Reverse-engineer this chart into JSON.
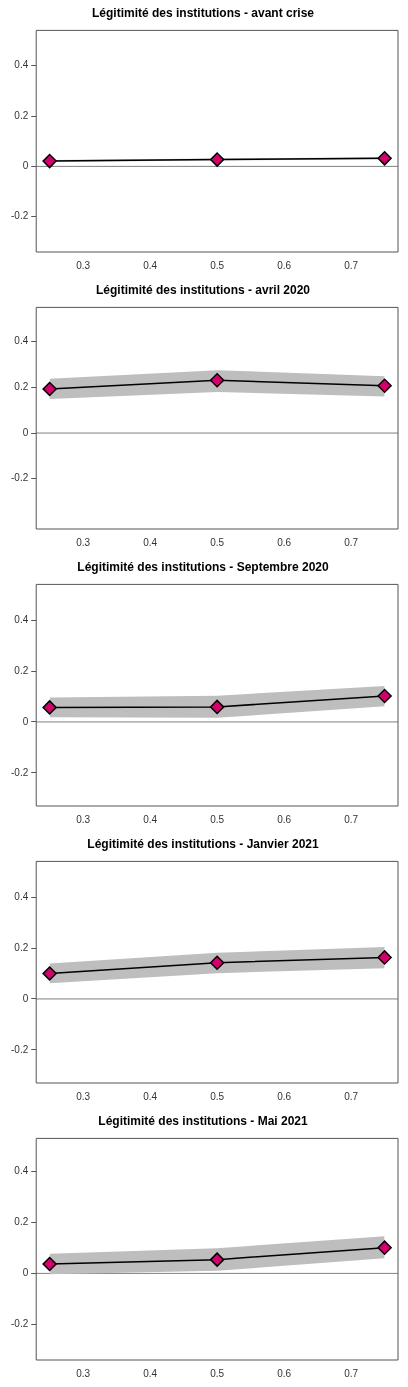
{
  "chart_data": [
    {
      "type": "line",
      "title": "Légitimité des institutions - avant crise",
      "xlim": [
        0.23,
        0.77
      ],
      "xticks": [
        0.3,
        0.4,
        0.5,
        0.6,
        0.7
      ],
      "ylim": [
        -0.34,
        0.54
      ],
      "yticks": [
        -0.2,
        0,
        0.2,
        0.4
      ],
      "marker": "diamond",
      "grid": false,
      "ref_lines": [
        {
          "axis": "y",
          "value": 0,
          "color": "#808080"
        }
      ],
      "series": [
        {
          "marker": "none",
          "color": "#000000",
          "x": [
            0.25,
            0.5,
            0.75
          ],
          "values": [
            0.021,
            0.027,
            0.032
          ],
          "lower": [
            0.017,
            0.023,
            0.028
          ],
          "upper": [
            0.025,
            0.031,
            0.036
          ]
        },
        {
          "type": "scatter",
          "color": "#d4006c",
          "x": [
            0.25,
            0.5,
            0.75
          ],
          "values": [
            0.021,
            0.027,
            0.032
          ]
        }
      ]
    },
    {
      "type": "line",
      "title": "Légitimité des institutions - avril 2020",
      "xlim": [
        0.23,
        0.77
      ],
      "xticks": [
        0.3,
        0.4,
        0.5,
        0.6,
        0.7
      ],
      "ylim": [
        -0.42,
        0.55
      ],
      "yticks": [
        -0.2,
        0,
        0.2,
        0.4
      ],
      "marker": "diamond",
      "grid": false,
      "ref_lines": [
        {
          "axis": "y",
          "value": 0,
          "color": "#808080"
        }
      ],
      "series": [
        {
          "marker": "none",
          "color": "#000000",
          "x": [
            0.25,
            0.5,
            0.75
          ],
          "values": [
            0.193,
            0.231,
            0.207
          ],
          "lower": [
            0.149,
            0.18,
            0.16
          ],
          "upper": [
            0.238,
            0.275,
            0.249
          ]
        },
        {
          "type": "scatter",
          "color": "#d4006c",
          "x": [
            0.25,
            0.5,
            0.75
          ],
          "values": [
            0.193,
            0.231,
            0.207
          ]
        }
      ]
    },
    {
      "type": "line",
      "title": "Légitimité des institutions - Septembre 2020",
      "xlim": [
        0.23,
        0.77
      ],
      "xticks": [
        0.3,
        0.4,
        0.5,
        0.6,
        0.7
      ],
      "ylim": [
        -0.33,
        0.54
      ],
      "yticks": [
        -0.2,
        0,
        0.2,
        0.4
      ],
      "marker": "diamond",
      "grid": false,
      "ref_lines": [
        {
          "axis": "y",
          "value": 0,
          "color": "#808080"
        }
      ],
      "series": [
        {
          "marker": "none",
          "color": "#000000",
          "x": [
            0.25,
            0.5,
            0.75
          ],
          "values": [
            0.057,
            0.059,
            0.102
          ],
          "lower": [
            0.018,
            0.016,
            0.062
          ],
          "upper": [
            0.096,
            0.103,
            0.141
          ]
        },
        {
          "type": "scatter",
          "color": "#d4006c",
          "x": [
            0.25,
            0.5,
            0.75
          ],
          "values": [
            0.057,
            0.059,
            0.102
          ]
        }
      ]
    },
    {
      "type": "line",
      "title": "Légitimité des institutions - Janvier 2021",
      "xlim": [
        0.23,
        0.77
      ],
      "xticks": [
        0.3,
        0.4,
        0.5,
        0.6,
        0.7
      ],
      "ylim": [
        -0.33,
        0.54
      ],
      "yticks": [
        -0.2,
        0,
        0.2,
        0.4
      ],
      "marker": "diamond",
      "grid": false,
      "ref_lines": [
        {
          "axis": "y",
          "value": 0,
          "color": "#808080"
        }
      ],
      "series": [
        {
          "marker": "none",
          "color": "#000000",
          "x": [
            0.25,
            0.5,
            0.75
          ],
          "values": [
            0.1,
            0.142,
            0.163
          ],
          "lower": [
            0.062,
            0.101,
            0.121
          ],
          "upper": [
            0.139,
            0.181,
            0.204
          ]
        },
        {
          "type": "scatter",
          "color": "#d4006c",
          "x": [
            0.25,
            0.5,
            0.75
          ],
          "values": [
            0.1,
            0.142,
            0.163
          ]
        }
      ]
    },
    {
      "type": "line",
      "title": "Légitimité des institutions - Mai 2021",
      "xlim": [
        0.23,
        0.77
      ],
      "xticks": [
        0.3,
        0.4,
        0.5,
        0.6,
        0.7
      ],
      "ylim": [
        -0.34,
        0.53
      ],
      "yticks": [
        -0.2,
        0,
        0.2,
        0.4
      ],
      "marker": "diamond",
      "grid": false,
      "ref_lines": [
        {
          "axis": "y",
          "value": 0,
          "color": "#808080"
        }
      ],
      "series": [
        {
          "marker": "none",
          "color": "#000000",
          "x": [
            0.25,
            0.5,
            0.75
          ],
          "values": [
            0.037,
            0.054,
            0.101
          ],
          "lower": [
            -0.003,
            0.01,
            0.059
          ],
          "upper": [
            0.077,
            0.099,
            0.146
          ]
        },
        {
          "type": "scatter",
          "color": "#d4006c",
          "x": [
            0.25,
            0.5,
            0.75
          ],
          "values": [
            0.037,
            0.054,
            0.101
          ]
        }
      ]
    }
  ]
}
